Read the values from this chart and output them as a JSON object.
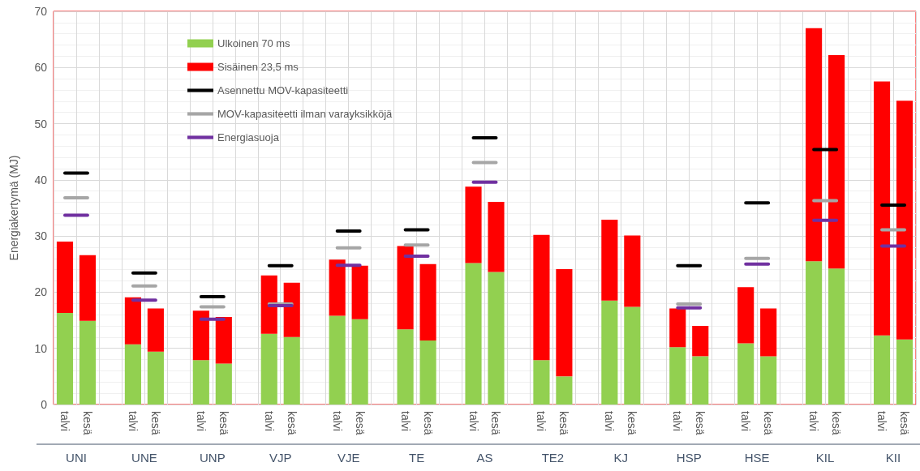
{
  "chart_data": {
    "type": "bar",
    "stacked": true,
    "ylabel": "Energiakertymä (MJ)",
    "ylim": [
      0,
      70
    ],
    "yticks": [
      0,
      10,
      20,
      30,
      40,
      50,
      60,
      70
    ],
    "grid": true,
    "legend": "top left",
    "categories": [
      "talvi",
      "kesä",
      null,
      "talvi",
      "kesä",
      null,
      "talvi",
      "kesä",
      null,
      "talvi",
      "kesä",
      null,
      "talvi",
      "kesä",
      null,
      "talvi",
      "kesä",
      null,
      "talvi",
      "kesä",
      null,
      "talvi",
      "kesä",
      null,
      "talvi",
      "kesä",
      null,
      "talvi",
      "kesä",
      null,
      "talvi",
      "kesä",
      null,
      "talvi",
      "kesä",
      null,
      "talvi",
      "kesä"
    ],
    "annotations": [
      "UNI",
      "UNE",
      "UNP",
      "VJP",
      "VJE",
      "TE",
      "AS",
      "TE2",
      "KJ",
      "HSP",
      "HSE",
      "KIL",
      "KII"
    ],
    "series": [
      {
        "name": "Ulkoinen 70 ms",
        "color": "#92d050",
        "values": [
          16.3,
          14.9,
          null,
          10.7,
          9.4,
          null,
          7.9,
          7.3,
          null,
          12.6,
          12.0,
          null,
          15.8,
          15.2,
          null,
          13.4,
          11.4,
          null,
          25.2,
          23.6,
          null,
          7.9,
          5.0,
          null,
          18.5,
          17.4,
          null,
          10.2,
          8.6,
          null,
          10.9,
          8.6,
          null,
          25.5,
          24.2,
          null,
          12.3,
          11.6
        ]
      },
      {
        "name": "Sisäinen 23,5 ms",
        "color": "#ff0000",
        "values": [
          12.7,
          11.7,
          null,
          8.4,
          7.7,
          null,
          8.8,
          8.3,
          null,
          10.4,
          9.7,
          null,
          10.0,
          9.5,
          null,
          14.8,
          13.6,
          null,
          13.6,
          12.5,
          null,
          22.3,
          19.1,
          null,
          14.4,
          12.7,
          null,
          6.9,
          5.4,
          null,
          10.0,
          8.5,
          null,
          41.5,
          38.0,
          null,
          45.2,
          42.5
        ]
      },
      {
        "name": "Asennettu MOV-kapasiteetti",
        "type": "line",
        "marker": "none",
        "color": "#000000",
        "values": [
          41.2,
          41.2,
          null,
          23.4,
          23.4,
          null,
          19.2,
          19.2,
          null,
          24.7,
          24.7,
          null,
          30.9,
          30.9,
          null,
          31.1,
          31.1,
          null,
          47.5,
          47.5,
          null,
          null,
          null,
          null,
          null,
          null,
          null,
          24.7,
          24.7,
          null,
          35.9,
          35.9,
          null,
          45.4,
          45.4,
          null,
          35.5,
          35.5
        ]
      },
      {
        "name": "MOV-kapasiteetti ilman varayksikköjä",
        "type": "line",
        "marker": "none",
        "color": "#a6a6a6",
        "values": [
          36.8,
          36.8,
          null,
          21.1,
          21.1,
          null,
          17.4,
          17.4,
          null,
          17.9,
          17.9,
          null,
          27.9,
          27.9,
          null,
          28.4,
          28.4,
          null,
          43.1,
          43.1,
          null,
          null,
          null,
          null,
          null,
          null,
          null,
          17.9,
          17.9,
          null,
          26.0,
          26.0,
          null,
          36.3,
          36.3,
          null,
          31.1,
          31.1
        ]
      },
      {
        "name": "Energiasuoja",
        "type": "line",
        "marker": "none",
        "color": "#7030a0",
        "values": [
          33.7,
          33.7,
          null,
          18.6,
          18.6,
          null,
          15.2,
          15.2,
          null,
          17.6,
          17.6,
          null,
          24.8,
          24.8,
          null,
          26.4,
          26.4,
          null,
          39.6,
          39.6,
          null,
          null,
          null,
          null,
          null,
          null,
          null,
          17.2,
          17.2,
          null,
          25.0,
          25.0,
          null,
          32.8,
          32.8,
          null,
          28.2,
          28.2
        ]
      }
    ]
  }
}
